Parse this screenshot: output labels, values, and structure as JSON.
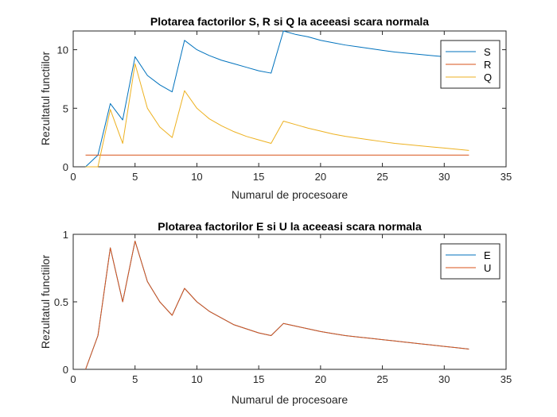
{
  "chart_data": [
    {
      "type": "line",
      "title": "Plotarea factorilor S, R si Q la aceeasi scara normala",
      "xlabel": "Numarul de procesoare",
      "ylabel": "Rezultatul functiilor",
      "xlim": [
        0,
        35
      ],
      "ylim": [
        0,
        11.6
      ],
      "xticks": [
        0,
        5,
        10,
        15,
        20,
        25,
        30,
        35
      ],
      "yticks": [
        0,
        5,
        10
      ],
      "x": [
        1,
        2,
        3,
        4,
        5,
        6,
        7,
        8,
        9,
        10,
        11,
        12,
        13,
        14,
        15,
        16,
        17,
        18,
        19,
        20,
        21,
        22,
        23,
        24,
        25,
        26,
        27,
        28,
        29,
        30,
        31,
        32
      ],
      "legend_position": "top-right",
      "series": [
        {
          "name": "S",
          "color": "#0072BD",
          "values": [
            0,
            1,
            5.4,
            4,
            9.4,
            7.8,
            7,
            6.4,
            10.8,
            10,
            9.5,
            9.1,
            8.8,
            8.5,
            8.2,
            8,
            11.6,
            11.3,
            11.1,
            10.8,
            10.6,
            10.4,
            10.25,
            10.1,
            9.95,
            9.8,
            9.7,
            9.6,
            9.5,
            9.4,
            9.3,
            9.2
          ]
        },
        {
          "name": "R",
          "color": "#D95319",
          "values": [
            1,
            1,
            1,
            1,
            1,
            1,
            1,
            1,
            1,
            1,
            1,
            1,
            1,
            1,
            1,
            1,
            1,
            1,
            1,
            1,
            1,
            1,
            1,
            1,
            1,
            1,
            1,
            1,
            1,
            1,
            1,
            1
          ]
        },
        {
          "name": "Q",
          "color": "#EDB120",
          "values": [
            0,
            0,
            4.9,
            2,
            8.8,
            5,
            3.4,
            2.5,
            6.5,
            5,
            4.1,
            3.5,
            3,
            2.6,
            2.3,
            2,
            3.9,
            3.6,
            3.3,
            3.05,
            2.8,
            2.6,
            2.45,
            2.3,
            2.15,
            2,
            1.9,
            1.8,
            1.7,
            1.6,
            1.5,
            1.4
          ]
        }
      ]
    },
    {
      "type": "line",
      "title": "Plotarea factorilor E si U la aceeasi scara normala",
      "xlabel": "Numarul de procesoare",
      "ylabel": "Rezultatul functiilor",
      "xlim": [
        0,
        35
      ],
      "ylim": [
        0,
        1
      ],
      "xticks": [
        0,
        5,
        10,
        15,
        20,
        25,
        30,
        35
      ],
      "yticks": [
        0,
        0.5,
        1
      ],
      "x": [
        1,
        2,
        3,
        4,
        5,
        6,
        7,
        8,
        9,
        10,
        11,
        12,
        13,
        14,
        15,
        16,
        17,
        18,
        19,
        20,
        21,
        22,
        23,
        24,
        25,
        26,
        27,
        28,
        29,
        30,
        31,
        32
      ],
      "legend_position": "top-right",
      "series": [
        {
          "name": "E",
          "color": "#0072BD",
          "values": [
            0,
            0.25,
            0.9,
            0.5,
            0.95,
            0.65,
            0.5,
            0.4,
            0.6,
            0.5,
            0.43,
            0.38,
            0.33,
            0.3,
            0.27,
            0.25,
            0.34,
            0.32,
            0.3,
            0.28,
            0.265,
            0.25,
            0.24,
            0.23,
            0.22,
            0.21,
            0.2,
            0.19,
            0.18,
            0.17,
            0.16,
            0.15
          ]
        },
        {
          "name": "U",
          "color": "#D95319",
          "values": [
            0,
            0.25,
            0.9,
            0.5,
            0.95,
            0.65,
            0.5,
            0.4,
            0.6,
            0.5,
            0.43,
            0.38,
            0.33,
            0.3,
            0.27,
            0.25,
            0.34,
            0.32,
            0.3,
            0.28,
            0.265,
            0.25,
            0.24,
            0.23,
            0.22,
            0.21,
            0.2,
            0.19,
            0.18,
            0.17,
            0.16,
            0.15
          ]
        }
      ]
    }
  ]
}
